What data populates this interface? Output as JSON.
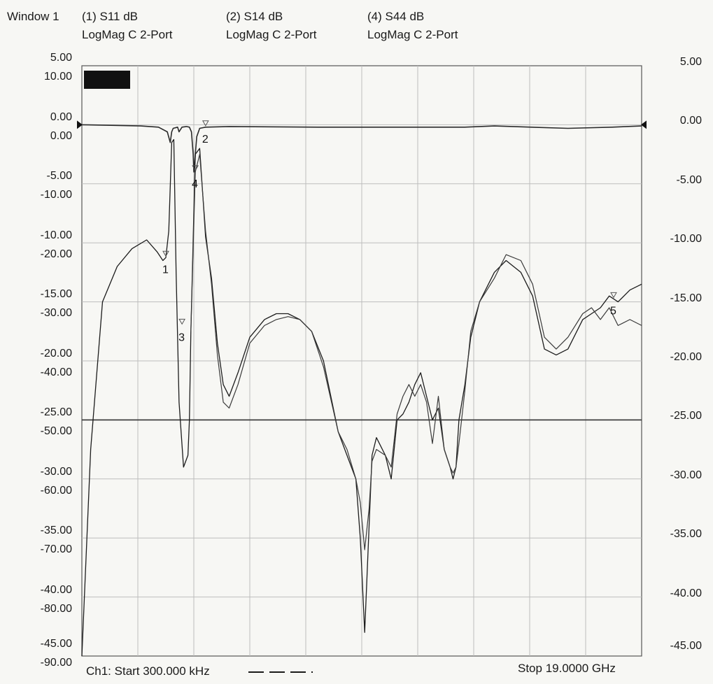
{
  "header": {
    "window_label": "Window 1",
    "traces": [
      {
        "id": "(1)",
        "title": "(1) S11 dB",
        "format": "LogMag C  2-Port"
      },
      {
        "id": "(2)",
        "title": "(2) S14 dB",
        "format": "LogMag C  2-Port"
      },
      {
        "id": "(4)",
        "title": "(4) S44 dB",
        "format": "LogMag C  2-Port"
      }
    ]
  },
  "footer": {
    "start_label": "Ch1: Start  300.000 kHz",
    "stop_label": "Stop  19.0000 GHz"
  },
  "axes": {
    "left_outer_ticks": [
      "5.00",
      "0.00",
      "-5.00",
      "-10.00",
      "-15.00",
      "-20.00",
      "-25.00",
      "-30.00",
      "-35.00",
      "-40.00",
      "-45.00"
    ],
    "left_inner_ticks": [
      "10.00",
      "0.00",
      "-10.00",
      "-20.00",
      "-30.00",
      "-40.00",
      "-50.00",
      "-60.00",
      "-70.00",
      "-80.00",
      "-90.00"
    ],
    "right_ticks": [
      "5.00",
      "0.00",
      "-5.00",
      "-10.00",
      "-15.00",
      "-20.00",
      "-25.00",
      "-30.00",
      "-35.00",
      "-40.00",
      "-45.00"
    ]
  },
  "chart_data": {
    "type": "line",
    "title": "",
    "xlabel": "",
    "x_unit": "GHz",
    "xlim": [
      0.0003,
      19.0
    ],
    "y_scale_a_lim": [
      -45,
      5
    ],
    "y_scale_b_lim": [
      -90,
      10
    ],
    "grid": true,
    "reference_line_a": -25,
    "reference_marker_a": 0,
    "markers": [
      {
        "label": "1",
        "x": 2.85,
        "trace": "(1)"
      },
      {
        "label": "2",
        "x": 4.2,
        "trace": "(2)"
      },
      {
        "label": "3",
        "x": 3.4,
        "trace": "(4)"
      },
      {
        "label": "4",
        "x": 3.85,
        "trace": "(4)"
      },
      {
        "label": "5",
        "x": 18.05,
        "trace": "(1)"
      }
    ],
    "series": [
      {
        "name": "(2) S14 dB",
        "scale": "a",
        "x": [
          0.0003,
          1.0,
          2.0,
          2.6,
          2.9,
          3.0,
          3.05,
          3.1,
          3.25,
          3.3,
          3.4,
          3.55,
          3.65,
          3.72,
          3.78,
          3.8,
          3.9,
          4.0,
          4.2,
          5.0,
          8.0,
          13.0,
          14.0,
          16.5,
          18.0,
          19.0
        ],
        "y": [
          0.0,
          -0.05,
          -0.1,
          -0.2,
          -0.6,
          -1.5,
          -0.6,
          -0.3,
          -0.2,
          -0.6,
          -0.2,
          -0.15,
          -0.2,
          -0.6,
          -2.5,
          -4.0,
          -1.0,
          -0.3,
          -0.2,
          -0.15,
          -0.2,
          -0.2,
          -0.1,
          -0.3,
          -0.2,
          -0.1
        ]
      },
      {
        "name": "(1) S11 dB",
        "scale": "b",
        "x": [
          0.0003,
          0.3,
          0.7,
          1.2,
          1.7,
          2.2,
          2.55,
          2.75,
          2.85,
          2.95,
          3.05,
          3.12,
          3.2,
          3.3,
          3.45,
          3.6,
          3.65,
          3.7,
          3.85,
          4.0,
          4.2,
          4.4,
          4.6,
          4.8,
          5.0,
          5.3,
          5.7,
          6.2,
          6.6,
          7.0,
          7.4,
          7.8,
          8.2,
          8.7,
          9.0,
          9.3,
          9.45,
          9.6,
          9.75,
          9.85,
          10.0,
          10.3,
          10.5,
          10.7,
          10.9,
          11.1,
          11.3,
          11.5,
          11.7,
          11.9,
          12.1,
          12.3,
          12.5,
          12.6,
          12.7,
          12.8,
          13.0,
          13.2,
          13.5,
          14.0,
          14.4,
          14.9,
          15.3,
          15.7,
          16.1,
          16.5,
          17.0,
          17.3,
          17.6,
          17.9,
          18.2,
          18.6,
          19.0
        ],
        "y": [
          -90,
          -55,
          -30,
          -24,
          -21,
          -19.5,
          -21.5,
          -23,
          -22.5,
          -18,
          -3,
          -2.5,
          -25,
          -47,
          -58,
          -56,
          -50,
          -35,
          -5,
          -4,
          -19,
          -26,
          -37,
          -44,
          -46,
          -42,
          -36,
          -33,
          -32,
          -32,
          -33,
          -35,
          -40,
          -52,
          -56,
          -60,
          -70,
          -86,
          -68,
          -56,
          -53,
          -56,
          -60,
          -50,
          -49,
          -47,
          -44,
          -42,
          -46,
          -50,
          -48,
          -55,
          -58,
          -60,
          -58,
          -50,
          -44,
          -36,
          -30,
          -25,
          -23,
          -25,
          -29,
          -38,
          -39,
          -38,
          -33,
          -32,
          -31,
          -29,
          -30,
          -28,
          -27
        ]
      },
      {
        "name": "(4) S44 dB",
        "scale": "b",
        "x": [
          3.7,
          3.85,
          4.0,
          4.2,
          4.4,
          4.6,
          4.8,
          5.0,
          5.3,
          5.7,
          6.2,
          6.6,
          7.0,
          7.4,
          7.8,
          8.2,
          8.7,
          9.0,
          9.3,
          9.45,
          9.6,
          9.75,
          9.85,
          10.0,
          10.3,
          10.5,
          10.7,
          10.9,
          11.1,
          11.3,
          11.5,
          11.7,
          11.9,
          12.1,
          12.3,
          12.5,
          12.6,
          12.7,
          12.8,
          13.0,
          13.2,
          13.5,
          14.0,
          14.4,
          14.9,
          15.3,
          15.7,
          16.1,
          16.5,
          17.0,
          17.3,
          17.6,
          17.9,
          18.2,
          18.6,
          19.0
        ],
        "y": [
          -35,
          -8,
          -5,
          -18,
          -27,
          -39,
          -47,
          -48,
          -44,
          -37,
          -34,
          -33,
          -32.5,
          -33,
          -35,
          -41,
          -52,
          -55,
          -60,
          -64,
          -72,
          -65,
          -57,
          -55,
          -56,
          -58,
          -49,
          -46,
          -44,
          -46,
          -44,
          -47,
          -54,
          -46,
          -55,
          -58,
          -59,
          -58,
          -54,
          -45,
          -35,
          -30,
          -26,
          -22,
          -23,
          -27,
          -36,
          -38,
          -36,
          -32,
          -31,
          -33,
          -31,
          -34,
          -33,
          -34
        ]
      }
    ]
  }
}
